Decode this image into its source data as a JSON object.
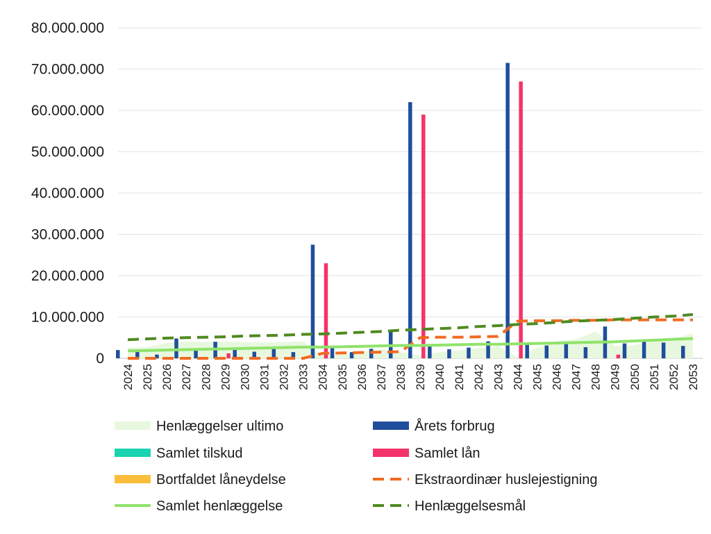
{
  "chart_data": {
    "type": "bar",
    "title": "",
    "xlabel": "",
    "ylabel": "",
    "ylim": [
      0,
      80000000
    ],
    "y_ticks": [
      0,
      10000000,
      20000000,
      30000000,
      40000000,
      50000000,
      60000000,
      70000000,
      80000000
    ],
    "y_tick_labels": [
      "0",
      "10.000.000",
      "20.000.000",
      "30.000.000",
      "40.000.000",
      "50.000.000",
      "60.000.000",
      "70.000.000",
      "80.000.000"
    ],
    "grid": true,
    "legend_position": "bottom",
    "categories": [
      "2024",
      "2025",
      "2026",
      "2027",
      "2028",
      "2029",
      "2030",
      "2031",
      "2032",
      "2033",
      "2034",
      "2035",
      "2036",
      "2037",
      "2038",
      "2039",
      "2040",
      "2041",
      "2042",
      "2043",
      "2044",
      "2045",
      "2046",
      "2047",
      "2048",
      "2049",
      "2050",
      "2051",
      "2052",
      "2053"
    ],
    "series": [
      {
        "name": "Henlæggelser ultimo",
        "kind": "area",
        "color": "#e8f8df",
        "values": [
          2600000,
          2700000,
          3700000,
          4100000,
          4000000,
          4100000,
          3900000,
          3800000,
          3900000,
          4100000,
          500000,
          1000000,
          1600000,
          2200000,
          1500000,
          700000,
          1500000,
          1900000,
          2500000,
          3000000,
          200000,
          2600000,
          4100000,
          4600000,
          6500000,
          3000000,
          3200000,
          4100000,
          4700000,
          6100000
        ]
      },
      {
        "name": "Årets forbrug",
        "kind": "bar",
        "color": "#1f4e9c",
        "values": [
          2000000,
          1500000,
          900000,
          4800000,
          2400000,
          4000000,
          2400000,
          1600000,
          2300000,
          1500000,
          27500000,
          3000000,
          1500000,
          2300000,
          6800000,
          62000000,
          3300000,
          2200000,
          2600000,
          4100000,
          71500000,
          3800000,
          3100000,
          3500000,
          2700000,
          7700000,
          3600000,
          4600000,
          3800000,
          3000000
        ]
      },
      {
        "name": "Samlet tilskud",
        "kind": "bar",
        "color": "#1ad3b0",
        "values": [
          0,
          0,
          0,
          0,
          0,
          0,
          0,
          0,
          0,
          0,
          0,
          0,
          0,
          0,
          0,
          0,
          0,
          0,
          0,
          0,
          0,
          0,
          0,
          0,
          0,
          0,
          0,
          0,
          0,
          0
        ]
      },
      {
        "name": "Samlet lån",
        "kind": "bar",
        "color": "#f5336b",
        "values": [
          0,
          0,
          0,
          0,
          0,
          1200000,
          0,
          0,
          0,
          0,
          23000000,
          0,
          0,
          0,
          0,
          59000000,
          0,
          0,
          0,
          0,
          67000000,
          0,
          0,
          0,
          0,
          900000,
          0,
          0,
          0,
          0
        ]
      },
      {
        "name": "Bortfaldet låneydelse",
        "kind": "bar",
        "color": "#fbbe3c",
        "values": [
          0,
          0,
          0,
          0,
          0,
          0,
          0,
          0,
          0,
          0,
          0,
          0,
          0,
          0,
          0,
          0,
          0,
          0,
          0,
          0,
          0,
          0,
          0,
          0,
          0,
          0,
          0,
          0,
          0,
          0
        ]
      },
      {
        "name": "Ekstraordinær huslejestigning",
        "kind": "line-dashed",
        "color": "#f26a21",
        "values": [
          0,
          0,
          0,
          0,
          0,
          0,
          0,
          0,
          0,
          0,
          1200000,
          1300000,
          1400000,
          1500000,
          1600000,
          5000000,
          5100000,
          5100000,
          5200000,
          5300000,
          9000000,
          9100000,
          9100000,
          9200000,
          9200000,
          9300000,
          9300000,
          9300000,
          9300000,
          9300000
        ]
      },
      {
        "name": "Samlet henlæggelse",
        "kind": "line",
        "color": "#8fe36a",
        "values": [
          1800000,
          1900000,
          2000000,
          2100000,
          2200000,
          2300000,
          2400000,
          2500000,
          2600000,
          2700000,
          2700000,
          2800000,
          2900000,
          3000000,
          3100000,
          3100000,
          3200000,
          3300000,
          3400000,
          3400000,
          3500000,
          3600000,
          3700000,
          3800000,
          3900000,
          4000000,
          4200000,
          4400000,
          4600000,
          4800000
        ]
      },
      {
        "name": "Henlæggelsesmål",
        "kind": "line-dashed",
        "color": "#4f8a1f",
        "values": [
          4500000,
          4700000,
          4900000,
          5000000,
          5100000,
          5200000,
          5400000,
          5500000,
          5600000,
          5800000,
          5900000,
          6100000,
          6300000,
          6500000,
          6800000,
          7000000,
          7200000,
          7400000,
          7700000,
          7900000,
          8200000,
          8400000,
          8700000,
          9000000,
          9200000,
          9400000,
          9700000,
          10000000,
          10200000,
          10600000
        ]
      }
    ]
  }
}
